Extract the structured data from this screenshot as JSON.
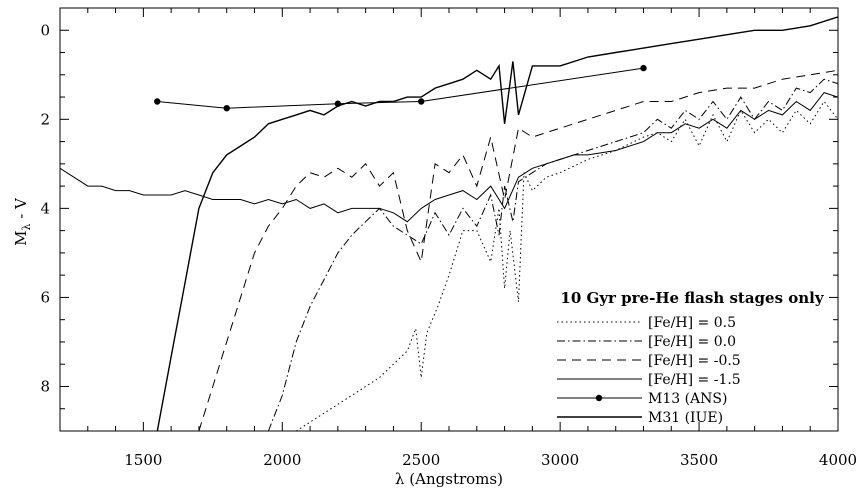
{
  "chart_data": {
    "type": "line",
    "xlabel": "λ (Angstroms)",
    "ylabel": "M",
    "ylabel_sub": "λ",
    "ylabel_suffix": " - V",
    "xlim": [
      1200,
      4000
    ],
    "ylim": [
      9,
      -0.5
    ],
    "y_inverted": true,
    "grid": false,
    "x_ticks": [
      1500,
      2000,
      2500,
      3000,
      3500,
      4000
    ],
    "y_ticks": [
      0,
      2,
      4,
      6,
      8
    ],
    "legend": {
      "title": "10 Gyr pre-He flash stages only",
      "placement": "bottom-right",
      "entries": [
        {
          "label": "[Fe/H] =  0.5",
          "style": "dotted"
        },
        {
          "label": "[Fe/H] =  0.0",
          "style": "dashdot"
        },
        {
          "label": "[Fe/H] = -0.5",
          "style": "dashed"
        },
        {
          "label": "[Fe/H] = -1.5",
          "style": "solid"
        },
        {
          "label": "M13 (ANS)",
          "style": "solid-marker"
        },
        {
          "label": "M31 (IUE)",
          "style": "solid-thick"
        }
      ]
    },
    "series": [
      {
        "name": "[Fe/H] =  0.5",
        "style": "dotted",
        "x": [
          2050,
          2150,
          2250,
          2350,
          2400,
          2450,
          2480,
          2500,
          2520,
          2560,
          2600,
          2650,
          2700,
          2750,
          2780,
          2800,
          2820,
          2850,
          2870,
          2900,
          2950,
          3000,
          3100,
          3200,
          3300,
          3350,
          3400,
          3450,
          3500,
          3550,
          3600,
          3650,
          3700,
          3750,
          3800,
          3850,
          3900,
          3950,
          4000
        ],
        "y": [
          9.0,
          8.6,
          8.2,
          7.8,
          7.5,
          7.2,
          6.7,
          7.8,
          6.8,
          6.2,
          5.5,
          4.5,
          4.5,
          5.2,
          4.0,
          5.8,
          4.5,
          6.1,
          3.2,
          3.6,
          3.3,
          3.2,
          2.9,
          2.7,
          2.4,
          2.3,
          2.5,
          2.0,
          2.6,
          1.9,
          2.5,
          1.8,
          2.3,
          2.0,
          2.3,
          1.8,
          2.1,
          1.6,
          2.0
        ]
      },
      {
        "name": "[Fe/H] =  0.0",
        "style": "dashdot",
        "x": [
          1950,
          2000,
          2050,
          2100,
          2150,
          2200,
          2250,
          2300,
          2350,
          2400,
          2450,
          2500,
          2550,
          2600,
          2650,
          2700,
          2750,
          2780,
          2800,
          2830,
          2850,
          2900,
          2950,
          3000,
          3100,
          3200,
          3300,
          3350,
          3400,
          3450,
          3500,
          3550,
          3600,
          3650,
          3700,
          3750,
          3800,
          3850,
          3900,
          3950,
          4000
        ],
        "y": [
          9.0,
          8.2,
          7.0,
          6.2,
          5.6,
          5.0,
          4.6,
          4.3,
          4.0,
          4.4,
          4.6,
          4.8,
          4.1,
          4.6,
          4.0,
          4.4,
          3.7,
          4.6,
          3.5,
          4.3,
          3.4,
          3.2,
          3.0,
          2.9,
          2.7,
          2.5,
          2.3,
          2.0,
          2.2,
          1.8,
          2.0,
          1.6,
          2.0,
          1.5,
          2.0,
          1.6,
          1.8,
          1.3,
          1.4,
          1.1,
          1.2
        ]
      },
      {
        "name": "[Fe/H] = -0.5",
        "style": "dashed",
        "x": [
          1700,
          1750,
          1800,
          1850,
          1900,
          1950,
          2000,
          2050,
          2100,
          2150,
          2200,
          2250,
          2300,
          2350,
          2400,
          2450,
          2500,
          2550,
          2600,
          2650,
          2700,
          2750,
          2800,
          2850,
          2900,
          3000,
          3100,
          3200,
          3300,
          3400,
          3500,
          3600,
          3700,
          3800,
          3900,
          4000
        ],
        "y": [
          9.0,
          8.0,
          7.0,
          6.0,
          5.0,
          4.4,
          4.0,
          3.5,
          3.2,
          3.3,
          3.1,
          3.3,
          3.0,
          3.5,
          3.2,
          4.5,
          5.2,
          3.0,
          3.2,
          2.8,
          3.5,
          2.4,
          3.8,
          2.2,
          2.4,
          2.2,
          2.0,
          1.8,
          1.6,
          1.6,
          1.4,
          1.3,
          1.3,
          1.1,
          1.0,
          0.9
        ]
      },
      {
        "name": "[Fe/H] = -1.5",
        "style": "solid",
        "x": [
          1200,
          1250,
          1300,
          1350,
          1400,
          1450,
          1500,
          1550,
          1600,
          1650,
          1700,
          1750,
          1800,
          1850,
          1900,
          1950,
          2000,
          2050,
          2100,
          2150,
          2200,
          2250,
          2300,
          2350,
          2400,
          2450,
          2500,
          2550,
          2600,
          2650,
          2700,
          2750,
          2800,
          2850,
          2900,
          2950,
          3000,
          3050,
          3100,
          3200,
          3300,
          3350,
          3400,
          3450,
          3500,
          3550,
          3600,
          3650,
          3700,
          3750,
          3800,
          3850,
          3900,
          3950,
          4000
        ],
        "y": [
          3.1,
          3.3,
          3.5,
          3.5,
          3.6,
          3.6,
          3.7,
          3.7,
          3.7,
          3.6,
          3.7,
          3.8,
          3.8,
          3.8,
          3.9,
          3.8,
          3.9,
          3.8,
          4.0,
          3.9,
          4.1,
          4.0,
          4.0,
          4.0,
          4.1,
          4.3,
          4.0,
          3.8,
          3.7,
          3.6,
          3.8,
          3.5,
          4.0,
          3.3,
          3.1,
          3.0,
          2.9,
          2.8,
          2.8,
          2.7,
          2.5,
          2.3,
          2.3,
          2.1,
          2.2,
          2.0,
          2.2,
          1.8,
          2.0,
          1.8,
          1.9,
          1.6,
          1.8,
          1.4,
          1.5
        ]
      },
      {
        "name": "M31 (IUE)",
        "style": "solid-thick",
        "x": [
          1550,
          1580,
          1610,
          1640,
          1670,
          1700,
          1750,
          1800,
          1850,
          1900,
          1950,
          2000,
          2050,
          2100,
          2150,
          2200,
          2250,
          2300,
          2350,
          2400,
          2450,
          2500,
          2550,
          2600,
          2650,
          2700,
          2750,
          2780,
          2800,
          2830,
          2850,
          2900,
          2950,
          3000,
          3100,
          3200,
          3300,
          3400,
          3500,
          3600,
          3700,
          3800,
          3900,
          4000
        ],
        "y": [
          9.0,
          8.0,
          7.0,
          6.0,
          5.0,
          4.0,
          3.2,
          2.8,
          2.6,
          2.4,
          2.1,
          2.0,
          1.9,
          1.8,
          1.9,
          1.7,
          1.6,
          1.7,
          1.6,
          1.6,
          1.5,
          1.5,
          1.3,
          1.2,
          1.1,
          0.9,
          1.1,
          0.8,
          2.1,
          0.7,
          1.9,
          0.8,
          0.8,
          0.8,
          0.6,
          0.5,
          0.4,
          0.3,
          0.2,
          0.1,
          0.0,
          0.0,
          -0.1,
          -0.3
        ]
      },
      {
        "name": "M13 (ANS)",
        "style": "solid-marker",
        "x": [
          1550,
          1800,
          2200,
          2500,
          3300
        ],
        "y": [
          1.6,
          1.75,
          1.65,
          1.6,
          0.85
        ]
      }
    ]
  }
}
